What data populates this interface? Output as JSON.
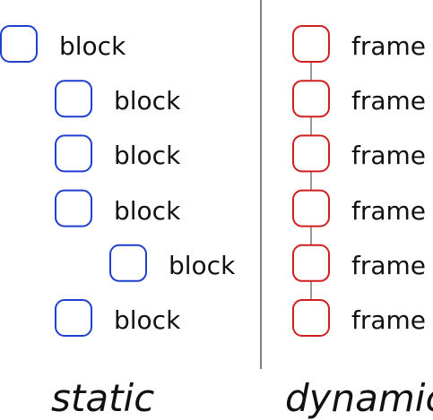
{
  "static": {
    "caption": "static",
    "items": [
      {
        "label": "block",
        "depth": 0
      },
      {
        "label": "block",
        "depth": 1
      },
      {
        "label": "block",
        "depth": 1
      },
      {
        "label": "block",
        "depth": 1
      },
      {
        "label": "block",
        "depth": 2
      },
      {
        "label": "block",
        "depth": 1
      }
    ]
  },
  "dynamic": {
    "caption": "dynamic",
    "items": [
      {
        "label": "frame"
      },
      {
        "label": "frame"
      },
      {
        "label": "frame"
      },
      {
        "label": "frame"
      },
      {
        "label": "frame"
      },
      {
        "label": "frame"
      }
    ]
  },
  "colors": {
    "static_box": "#1f3fd0",
    "dynamic_box": "#d01f1f",
    "divider": "#555555",
    "connector": "#555555"
  }
}
